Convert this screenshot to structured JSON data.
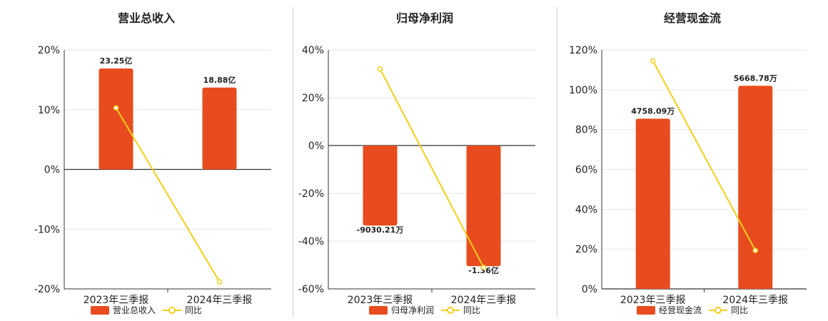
{
  "colors": {
    "bar": "#E84C1E",
    "line": "#F2CF1A",
    "grid": "#e6e6e6",
    "axis": "#333333"
  },
  "chart_data": [
    {
      "type": "bar",
      "title": "营业总收入",
      "categories": [
        "2023年三季报",
        "2024年三季报"
      ],
      "series": [
        {
          "name": "营业总收入",
          "type": "bar",
          "values": [
            16.9,
            13.7
          ],
          "labels": [
            "23.25亿",
            "18.88亿"
          ]
        },
        {
          "name": "同比",
          "type": "line",
          "values": [
            10.3,
            -18.8
          ]
        }
      ],
      "ylim": [
        -20,
        20
      ],
      "yticks": [
        "20%",
        "10%",
        "0%",
        "-10%",
        "-20%"
      ],
      "ytick_values": [
        20,
        10,
        0,
        -10,
        -20
      ],
      "grid": true,
      "legend": "bottom"
    },
    {
      "type": "bar",
      "title": "归母净利润",
      "categories": [
        "2023年三季报",
        "2024年三季报"
      ],
      "series": [
        {
          "name": "归母净利润",
          "type": "bar",
          "values": [
            -33.5,
            -50.5
          ],
          "labels": [
            "-9030.21万",
            "-1.36亿"
          ]
        },
        {
          "name": "同比",
          "type": "line",
          "values": [
            32,
            -51
          ]
        }
      ],
      "ylim": [
        -60,
        40
      ],
      "yticks": [
        "40%",
        "20%",
        "0%",
        "-20%",
        "-40%",
        "-60%"
      ],
      "ytick_values": [
        40,
        20,
        0,
        -20,
        -40,
        -60
      ],
      "grid": true,
      "legend": "bottom"
    },
    {
      "type": "bar",
      "title": "经营现金流",
      "categories": [
        "2023年三季报",
        "2024年三季报"
      ],
      "series": [
        {
          "name": "经营现金流",
          "type": "bar",
          "values": [
            85.5,
            102
          ],
          "labels": [
            "4758.09万",
            "5668.78万"
          ]
        },
        {
          "name": "同比",
          "type": "line",
          "values": [
            114.5,
            19.3
          ]
        }
      ],
      "ylim": [
        0,
        120
      ],
      "yticks": [
        "120%",
        "100%",
        "80%",
        "60%",
        "40%",
        "20%",
        "0%"
      ],
      "ytick_values": [
        120,
        100,
        80,
        60,
        40,
        20,
        0
      ],
      "grid": true,
      "legend": "bottom"
    }
  ]
}
